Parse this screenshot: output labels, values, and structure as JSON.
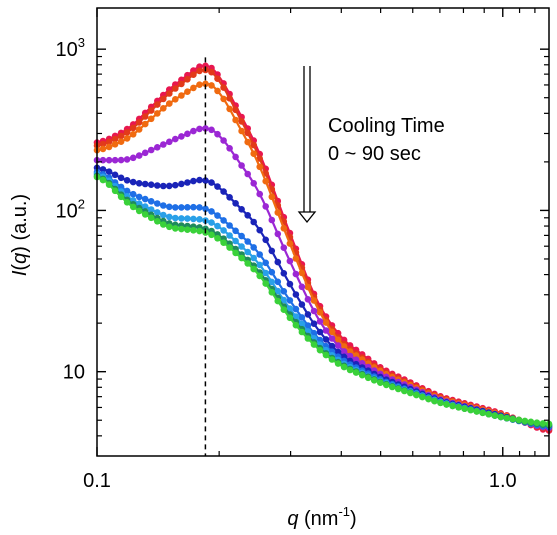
{
  "chart_data": {
    "type": "scatter",
    "xlabel": {
      "italic": "q",
      "text": " (nm",
      "sup": "-1",
      "close": ")"
    },
    "ylabel": {
      "italic": "I",
      "open": "(",
      "italic2": "q",
      "text": ") (a.u.)"
    },
    "xscale": "log",
    "yscale": "log",
    "xlim": [
      0.1,
      1.3
    ],
    "ylim": [
      3.0,
      1800
    ],
    "x_ticks": [
      {
        "value": 0.1,
        "label": "0.1"
      },
      {
        "value": 1.0,
        "label": "1.0"
      }
    ],
    "y_ticks": [
      {
        "value": 10,
        "label": "10"
      },
      {
        "value": 100,
        "base": "10",
        "exp": "2"
      },
      {
        "value": 1000,
        "base": "10",
        "exp": "3"
      }
    ],
    "grid": false,
    "legend": "none",
    "annotation": {
      "lines": [
        "Cooling Time",
        "0 ~ 90 sec"
      ],
      "arrow": "down"
    },
    "reference_line_x": 0.185,
    "series": [
      {
        "color": "#e8174f",
        "values": [
          [
            0.1,
            255
          ],
          [
            0.12,
            320
          ],
          [
            0.15,
            560
          ],
          [
            0.185,
            840
          ],
          [
            0.2,
            700
          ],
          [
            0.25,
            240
          ],
          [
            0.3,
            70
          ],
          [
            0.35,
            26
          ],
          [
            0.4,
            16
          ],
          [
            0.5,
            10.5
          ],
          [
            0.7,
            7.0
          ],
          [
            1.0,
            5.5
          ],
          [
            1.3,
            4.2
          ]
        ]
      },
      {
        "color": "#e23a1a",
        "values": [
          [
            0.1,
            245
          ],
          [
            0.12,
            305
          ],
          [
            0.15,
            530
          ],
          [
            0.185,
            790
          ],
          [
            0.2,
            660
          ],
          [
            0.25,
            225
          ],
          [
            0.3,
            66
          ],
          [
            0.35,
            25
          ],
          [
            0.4,
            15
          ],
          [
            0.5,
            10.2
          ],
          [
            0.7,
            6.9
          ],
          [
            1.0,
            5.4
          ],
          [
            1.3,
            4.3
          ]
        ]
      },
      {
        "color": "#f06a10",
        "values": [
          [
            0.1,
            230
          ],
          [
            0.12,
            280
          ],
          [
            0.15,
            460
          ],
          [
            0.185,
            640
          ],
          [
            0.2,
            560
          ],
          [
            0.25,
            200
          ],
          [
            0.3,
            60
          ],
          [
            0.35,
            24
          ],
          [
            0.4,
            14.5
          ],
          [
            0.5,
            10
          ],
          [
            0.7,
            6.8
          ],
          [
            1.0,
            5.4
          ],
          [
            1.3,
            4.4
          ]
        ]
      },
      {
        "color": "#9b27d4",
        "values": [
          [
            0.1,
            205
          ],
          [
            0.12,
            205
          ],
          [
            0.15,
            265
          ],
          [
            0.185,
            335
          ],
          [
            0.2,
            300
          ],
          [
            0.25,
            135
          ],
          [
            0.3,
            47
          ],
          [
            0.35,
            21
          ],
          [
            0.4,
            13.5
          ],
          [
            0.5,
            9.6
          ],
          [
            0.7,
            6.7
          ],
          [
            1.0,
            5.3
          ],
          [
            1.3,
            4.4
          ]
        ]
      },
      {
        "color": "#1a24b8",
        "values": [
          [
            0.1,
            190
          ],
          [
            0.12,
            150
          ],
          [
            0.15,
            140
          ],
          [
            0.185,
            158
          ],
          [
            0.2,
            140
          ],
          [
            0.25,
            80
          ],
          [
            0.3,
            34
          ],
          [
            0.35,
            18
          ],
          [
            0.4,
            12.5
          ],
          [
            0.5,
            9.2
          ],
          [
            0.7,
            6.6
          ],
          [
            1.0,
            5.3
          ],
          [
            1.3,
            4.5
          ]
        ]
      },
      {
        "color": "#1e6fe6",
        "values": [
          [
            0.1,
            182
          ],
          [
            0.12,
            128
          ],
          [
            0.15,
            104
          ],
          [
            0.185,
            105
          ],
          [
            0.2,
            92
          ],
          [
            0.25,
            56
          ],
          [
            0.3,
            27
          ],
          [
            0.35,
            16
          ],
          [
            0.4,
            11.8
          ],
          [
            0.5,
            8.9
          ],
          [
            0.7,
            6.5
          ],
          [
            1.0,
            5.2
          ],
          [
            1.3,
            4.5
          ]
        ]
      },
      {
        "color": "#29a0e8",
        "values": [
          [
            0.1,
            178
          ],
          [
            0.12,
            118
          ],
          [
            0.15,
            90
          ],
          [
            0.185,
            88
          ],
          [
            0.2,
            80
          ],
          [
            0.25,
            48
          ],
          [
            0.3,
            24
          ],
          [
            0.35,
            15
          ],
          [
            0.4,
            11.3
          ],
          [
            0.5,
            8.7
          ],
          [
            0.7,
            6.5
          ],
          [
            1.0,
            5.2
          ],
          [
            1.3,
            4.6
          ]
        ]
      },
      {
        "color": "#1f8a5c",
        "values": [
          [
            0.1,
            174
          ],
          [
            0.12,
            112
          ],
          [
            0.15,
            82
          ],
          [
            0.185,
            78
          ],
          [
            0.2,
            71
          ],
          [
            0.25,
            43
          ],
          [
            0.3,
            22
          ],
          [
            0.35,
            14.2
          ],
          [
            0.4,
            11
          ],
          [
            0.5,
            8.6
          ],
          [
            0.7,
            6.4
          ],
          [
            1.0,
            5.2
          ],
          [
            1.3,
            4.6
          ]
        ]
      },
      {
        "color": "#3ad13a",
        "values": [
          [
            0.1,
            172
          ],
          [
            0.12,
            108
          ],
          [
            0.15,
            78
          ],
          [
            0.185,
            74
          ],
          [
            0.2,
            67
          ],
          [
            0.25,
            41
          ],
          [
            0.3,
            21
          ],
          [
            0.35,
            13.8
          ],
          [
            0.4,
            10.8
          ],
          [
            0.5,
            8.5
          ],
          [
            0.7,
            6.4
          ],
          [
            1.0,
            5.2
          ],
          [
            1.3,
            4.7
          ]
        ]
      }
    ]
  }
}
